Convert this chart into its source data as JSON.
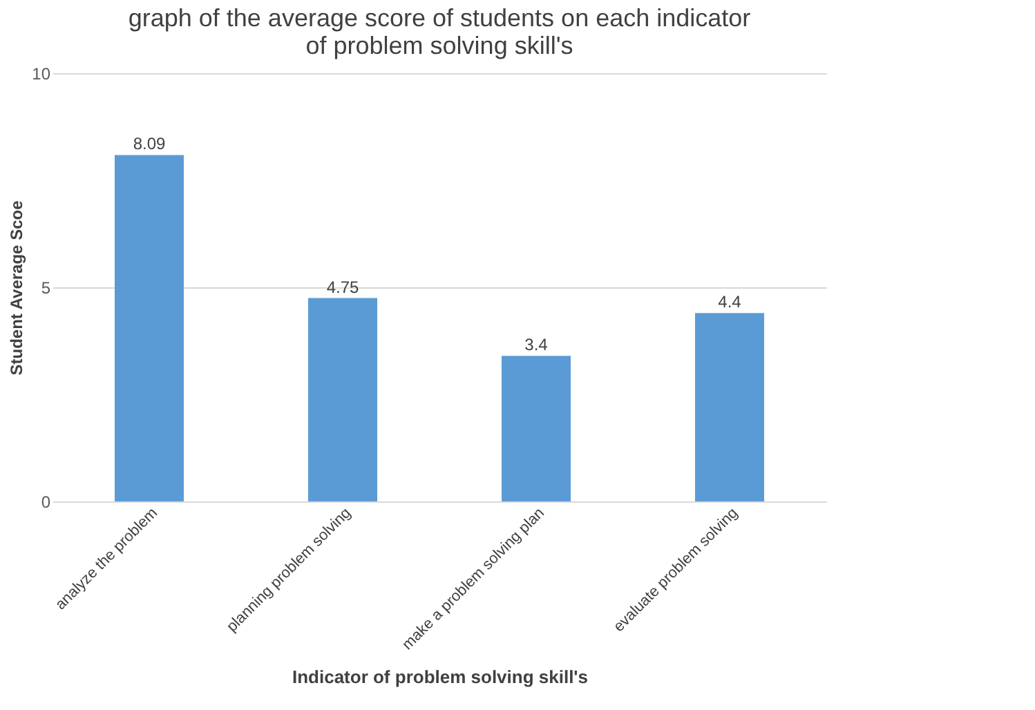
{
  "chart_data": {
    "type": "bar",
    "title": [
      "graph of the average score of students on each indicator",
      "of problem solving skill's"
    ],
    "xlabel": "Indicator of problem solving skill's",
    "ylabel": "Student Average Scoe",
    "categories": [
      "analyze the problem",
      "planning problem solving",
      "make a problem solving plan",
      "evaluate problem solving"
    ],
    "values": [
      8.09,
      4.75,
      3.4,
      4.4
    ],
    "color": "#5b9bd5",
    "ylim": [
      0,
      10
    ],
    "yticks": [
      0,
      5,
      10
    ],
    "grid": "y",
    "data_labels": true
  }
}
